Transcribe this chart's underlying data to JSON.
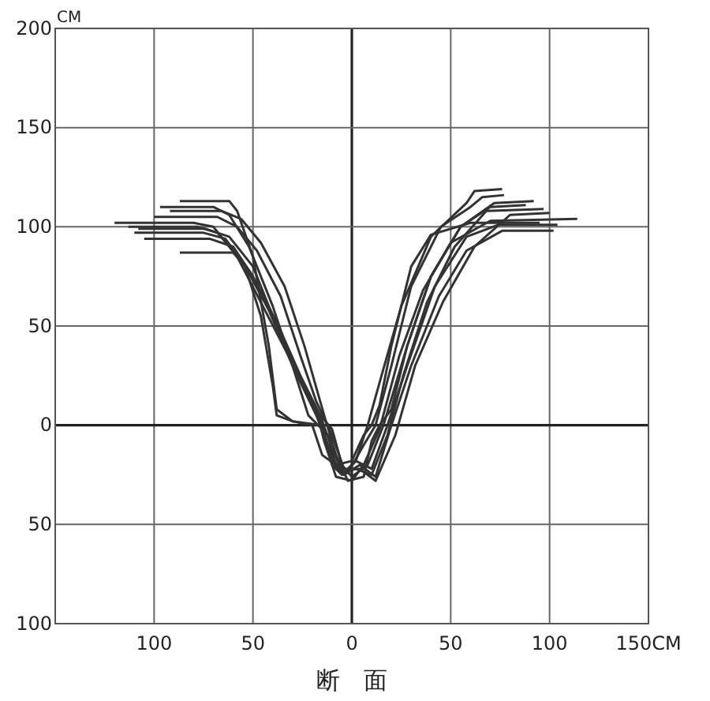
{
  "chart_data": {
    "type": "line",
    "xlabel": "断　面",
    "ylabel": "CM",
    "xlim": [
      -150,
      150
    ],
    "ylim": [
      -100,
      200
    ],
    "xticks": [
      {
        "value": -150,
        "label": null
      },
      {
        "value": -100,
        "label": "100"
      },
      {
        "value": -50,
        "label": "50"
      },
      0,
      50,
      100,
      {
        "value": 150,
        "label": "150CM"
      }
    ],
    "yticks": [
      {
        "value": -100,
        "label": "100"
      },
      {
        "value": -50,
        "label": "50"
      },
      0,
      50,
      100,
      150,
      200
    ],
    "grid": true,
    "line_style": "solid",
    "marker": "none",
    "series": [
      {
        "color": "#333333",
        "x": [
          -87,
          -62,
          -58,
          -50,
          -42,
          -38,
          -30,
          -15,
          -10,
          -5,
          2,
          8,
          15,
          25,
          40,
          58,
          62,
          76
        ],
        "values": [
          113,
          113,
          108,
          85,
          40,
          8,
          2,
          0,
          -20,
          -25,
          -18,
          0,
          25,
          60,
          95,
          112,
          118,
          119
        ]
      },
      {
        "color": "#333333",
        "x": [
          -97,
          -70,
          -62,
          -52,
          -40,
          -30,
          -22,
          -12,
          -8,
          -2,
          6,
          12,
          20,
          30,
          45,
          60,
          66,
          77
        ],
        "values": [
          110,
          110,
          106,
          90,
          60,
          30,
          5,
          -5,
          -22,
          -24,
          -10,
          0,
          30,
          70,
          100,
          110,
          115,
          116
        ]
      },
      {
        "color": "#333333",
        "x": [
          -120,
          -80,
          -70,
          -58,
          -45,
          -32,
          -20,
          -10,
          -5,
          0,
          8,
          16,
          28,
          40,
          55,
          72,
          92
        ],
        "values": [
          102,
          102,
          100,
          85,
          60,
          35,
          10,
          -2,
          -20,
          -26,
          -20,
          0,
          40,
          75,
          100,
          112,
          113
        ]
      },
      {
        "color": "#333333",
        "x": [
          -113,
          -78,
          -68,
          -55,
          -42,
          -30,
          -18,
          -12,
          -6,
          2,
          10,
          18,
          26,
          38,
          52,
          68,
          97
        ],
        "values": [
          100,
          100,
          97,
          82,
          58,
          30,
          5,
          -10,
          -24,
          -22,
          -25,
          -5,
          25,
          62,
          90,
          108,
          109
        ]
      },
      {
        "color": "#333333",
        "x": [
          -110,
          -75,
          -64,
          -52,
          -40,
          -28,
          -18,
          -14,
          -8,
          0,
          6,
          14,
          24,
          36,
          50,
          70,
          114
        ],
        "values": [
          97,
          97,
          94,
          78,
          55,
          28,
          8,
          -8,
          -26,
          -28,
          -20,
          -2,
          35,
          68,
          92,
          103,
          104
        ]
      },
      {
        "color": "#333333",
        "x": [
          -105,
          -72,
          -60,
          -50,
          -38,
          -26,
          -16,
          -10,
          -4,
          4,
          12,
          20,
          30,
          44,
          58,
          76,
          102
        ],
        "values": [
          94,
          94,
          90,
          75,
          52,
          25,
          5,
          -12,
          -25,
          -20,
          -26,
          0,
          30,
          65,
          88,
          98,
          98
        ]
      },
      {
        "color": "#333333",
        "x": [
          -87,
          -60,
          -54,
          -46,
          -40,
          -38,
          -30,
          -20,
          -15,
          -8,
          0,
          6,
          10,
          14,
          20,
          30,
          40,
          60,
          95
        ],
        "values": [
          87,
          87,
          80,
          55,
          20,
          5,
          2,
          0,
          -15,
          -20,
          -18,
          -5,
          0,
          10,
          40,
          80,
          96,
          102,
          102
        ]
      },
      {
        "color": "#333333",
        "x": [
          -100,
          -68,
          -58,
          -48,
          -36,
          -26,
          -18,
          -10,
          -4,
          4,
          12,
          22,
          32,
          46,
          62,
          80,
          100
        ],
        "values": [
          105,
          105,
          100,
          88,
          65,
          35,
          12,
          -5,
          -22,
          -22,
          -28,
          -5,
          30,
          62,
          90,
          106,
          107
        ]
      },
      {
        "color": "#333333",
        "x": [
          -92,
          -66,
          -56,
          -46,
          -34,
          -24,
          -14,
          -8,
          -2,
          6,
          10,
          14,
          20,
          28,
          40,
          55,
          70,
          88
        ],
        "values": [
          108,
          108,
          104,
          92,
          70,
          40,
          5,
          -15,
          -28,
          -26,
          -8,
          0,
          8,
          40,
          75,
          100,
          110,
          111
        ]
      },
      {
        "color": "#333333",
        "x": [
          -108,
          -74,
          -62,
          -50,
          -38,
          -24,
          -16,
          -10,
          -4,
          2,
          10,
          18,
          28,
          42,
          58,
          74,
          104
        ],
        "values": [
          99,
          99,
          95,
          80,
          50,
          20,
          3,
          -18,
          -24,
          -18,
          -22,
          0,
          30,
          70,
          95,
          101,
          101
        ]
      }
    ]
  }
}
